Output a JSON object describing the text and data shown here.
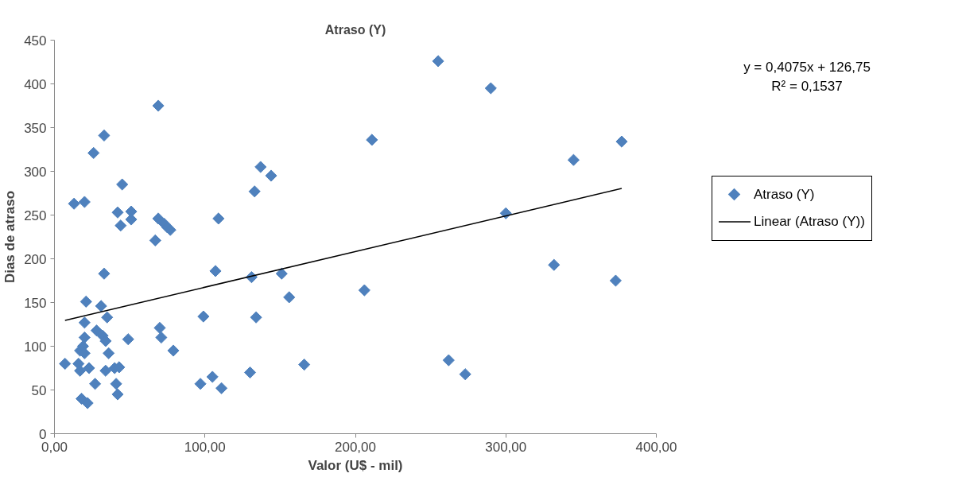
{
  "chart_data": {
    "type": "scatter",
    "title": "Atraso (Y)",
    "xlabel": "Valor (U$ - mil)",
    "ylabel": "Dias de atraso",
    "series": [
      {
        "name": "Atraso (Y)",
        "type": "scatter",
        "color": "#4f81bd",
        "marker": "diamond",
        "x": [
          7,
          13,
          16,
          17,
          17,
          18,
          19,
          20,
          20,
          20,
          20,
          21,
          22,
          23,
          26,
          27,
          28,
          31,
          32,
          33,
          33,
          34,
          34,
          35,
          36,
          40,
          41,
          42,
          42,
          43,
          44,
          45,
          49,
          51,
          51,
          67,
          69,
          69,
          70,
          71,
          73,
          75,
          77,
          79,
          99,
          97,
          105,
          107,
          109,
          111,
          130,
          131,
          133,
          134,
          137,
          144,
          151,
          156,
          166,
          206,
          211,
          255,
          262,
          273,
          290,
          300,
          332,
          345,
          373,
          377
        ],
        "values": [
          80,
          263,
          80,
          72,
          95,
          40,
          100,
          265,
          92,
          110,
          127,
          151,
          35,
          75,
          321,
          57,
          118,
          146,
          112,
          341,
          183,
          72,
          106,
          133,
          92,
          75,
          57,
          253,
          45,
          76,
          238,
          285,
          108,
          245,
          254,
          221,
          375,
          246,
          121,
          110,
          240,
          236,
          233,
          95,
          134,
          57,
          65,
          186,
          246,
          52,
          70,
          179,
          277,
          133,
          305,
          295,
          183,
          156,
          79,
          164,
          336,
          426,
          84,
          68,
          395,
          252,
          193,
          313,
          175,
          334
        ]
      },
      {
        "name": "Linear (Atraso (Y))",
        "type": "line",
        "color": "#000000",
        "line_style": "solid",
        "marker": "none",
        "x": [
          7,
          377
        ],
        "values": [
          129.6,
          280.4
        ]
      }
    ],
    "annotations": [
      "y = 0,4075x + 126,75",
      "R² = 0,1537"
    ],
    "xlim": [
      0,
      400
    ],
    "ylim": [
      0,
      450
    ],
    "xticks": [
      {
        "value": 0,
        "label": "0,00"
      },
      {
        "value": 100,
        "label": "100,00"
      },
      {
        "value": 200,
        "label": "200,00"
      },
      {
        "value": 300,
        "label": "300,00"
      },
      {
        "value": 400,
        "label": "400,00"
      }
    ],
    "yticks": [
      0,
      50,
      100,
      150,
      200,
      250,
      300,
      350,
      400,
      450
    ],
    "grid": false,
    "legend": "right"
  }
}
